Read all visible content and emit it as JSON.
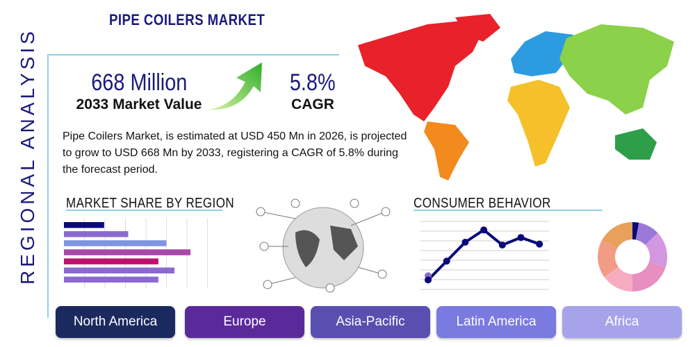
{
  "title": "PIPE COILERS MARKET",
  "side_label": "REGIONAL ANALYSIS",
  "market_value": {
    "value": "668 Million",
    "label": "2033 Market Value"
  },
  "cagr": {
    "value": "5.8%",
    "label": "CAGR"
  },
  "description": "Pipe Coilers Market, is estimated at USD 450 Mn in 2026, is projected to grow to USD 668 Mn by 2033, registering a CAGR of 5.8% during the forecast period.",
  "sections": {
    "market_share": "MARKET SHARE BY REGION",
    "consumer": "CONSUMER BEHAVIOR"
  },
  "regions": [
    {
      "label": "North America",
      "color": "#1b2a5e"
    },
    {
      "label": "Europe",
      "color": "#5b2a9a"
    },
    {
      "label": "Asia-Pacific",
      "color": "#5a4fb0"
    },
    {
      "label": "Latin America",
      "color": "#7a7ae0"
    },
    {
      "label": "Africa",
      "color": "#a7a3ea"
    }
  ],
  "chart_data": [
    {
      "type": "bar",
      "orientation": "horizontal",
      "values": [
        2.0,
        3.2,
        5.1,
        6.3,
        4.7,
        5.5,
        4.7
      ],
      "colors": [
        "#0a0a7a",
        "#8a6ad0",
        "#7e95e0",
        "#a848a8",
        "#c0106e",
        "#8a6ad0",
        "#8a6ad0"
      ],
      "xlim": [
        0,
        8
      ],
      "grid": true
    },
    {
      "type": "line",
      "values": [
        1,
        3,
        5,
        6.3,
        4.7,
        5.5,
        4.8
      ],
      "ylim": [
        0,
        7.5
      ],
      "grid": true,
      "color": "#0a0a7a"
    },
    {
      "type": "pie",
      "donut": true,
      "values": [
        3,
        10,
        17,
        20,
        15,
        18,
        17
      ],
      "colors": [
        "#0a0a7a",
        "#9b78d8",
        "#d396e0",
        "#e78fbf",
        "#f7acc2",
        "#f29c86",
        "#e8a05a"
      ]
    }
  ],
  "map_colors": {
    "north_america": "#e8212a",
    "south_america": "#f28a1e",
    "europe": "#2c9be0",
    "asia": "#8cd14a",
    "africa": "#f5c02a",
    "oceania": "#2e9e48"
  }
}
